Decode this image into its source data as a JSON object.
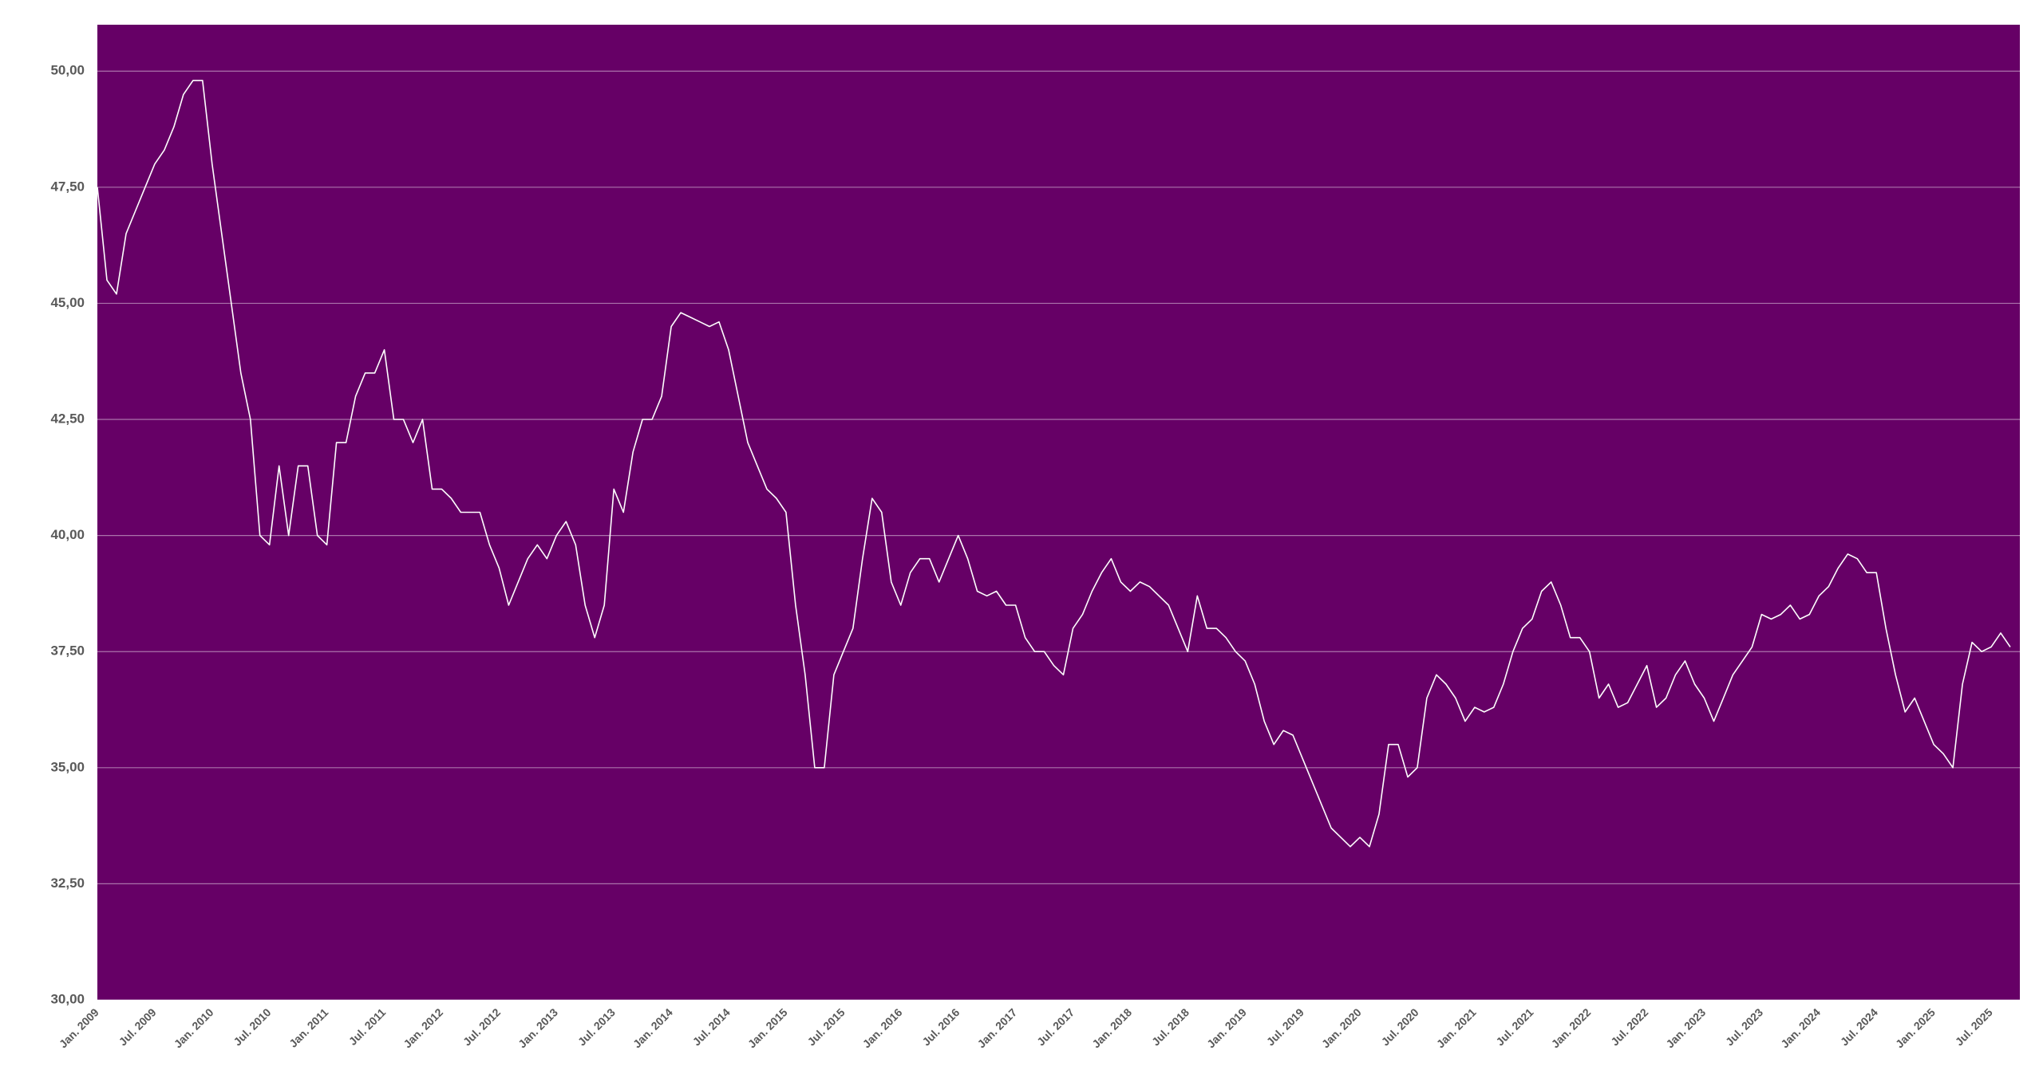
{
  "chart_data": {
    "type": "line",
    "categories": [
      "Jan. 2009",
      null,
      null,
      null,
      null,
      null,
      "Jul. 2009",
      null,
      null,
      null,
      null,
      null,
      "Jan. 2010",
      null,
      null,
      null,
      null,
      null,
      "Jul. 2010",
      null,
      null,
      null,
      null,
      null,
      "Jan. 2011",
      null,
      null,
      null,
      null,
      null,
      "Jul. 2011",
      null,
      null,
      null,
      null,
      null,
      "Jan. 2012",
      null,
      null,
      null,
      null,
      null,
      "Jul. 2012",
      null,
      null,
      null,
      null,
      null,
      "Jan. 2013",
      null,
      null,
      null,
      null,
      null,
      "Jul. 2013",
      null,
      null,
      null,
      null,
      null,
      "Jan. 2014",
      null,
      null,
      null,
      null,
      null,
      "Jul. 2014",
      null,
      null,
      null,
      null,
      null,
      "Jan. 2015",
      null,
      null,
      null,
      null,
      null,
      "Jul. 2015",
      null,
      null,
      null,
      null,
      null,
      "Jan. 2016",
      null,
      null,
      null,
      null,
      null,
      "Jul. 2016",
      null,
      null,
      null,
      null,
      null,
      "Jan. 2017",
      null,
      null,
      null,
      null,
      null,
      "Jul. 2017",
      null,
      null,
      null,
      null,
      null,
      "Jan. 2018",
      null,
      null,
      null,
      null,
      null,
      "Jul. 2018",
      null,
      null,
      null,
      null,
      null,
      "Jan. 2019",
      null,
      null,
      null,
      null,
      null,
      "Jul. 2019",
      null,
      null,
      null,
      null,
      null,
      "Jan. 2020",
      null,
      null,
      null,
      null,
      null,
      "Jul. 2020",
      null,
      null,
      null,
      null,
      null,
      "Jan. 2021",
      null,
      null,
      null,
      null,
      null,
      "Jul. 2021",
      null,
      null,
      null,
      null,
      null,
      "Jan. 2022",
      null,
      null,
      null,
      null,
      null,
      "Jul. 2022",
      null,
      null,
      null,
      null,
      null,
      "Jan. 2023",
      null,
      null,
      null,
      null,
      null,
      "Jul. 2023",
      null,
      null,
      null,
      null,
      null,
      "Jan. 2024",
      null,
      null,
      null,
      null,
      null,
      "Jul. 2024",
      null,
      null,
      null,
      null,
      null,
      "Jan. 2025",
      null,
      null,
      null,
      null,
      null,
      "Jul. 2025",
      null,
      null
    ],
    "values": [
      47.5,
      45.5,
      45.2,
      46.5,
      47,
      47.5,
      48,
      48.3,
      48.8,
      49.5,
      49.8,
      49.8,
      48,
      46.5,
      45,
      43.5,
      42.5,
      40,
      39.8,
      41.5,
      40,
      41.5,
      41.5,
      40,
      39.8,
      42,
      42,
      43,
      43.5,
      43.5,
      44,
      42.5,
      42.5,
      42,
      42.5,
      41,
      41,
      40.8,
      40.5,
      40.5,
      40.5,
      39.8,
      39.3,
      38.5,
      39,
      39.5,
      39.8,
      39.5,
      40,
      40.3,
      39.8,
      38.5,
      37.8,
      38.5,
      41,
      40.5,
      41.8,
      42.5,
      42.5,
      43,
      44.5,
      44.8,
      44.7,
      44.6,
      44.5,
      44.6,
      44,
      43,
      42,
      41.5,
      41,
      40.8,
      40.5,
      38.5,
      37,
      35,
      35,
      37,
      37.5,
      38,
      39.5,
      40.8,
      40.5,
      39,
      38.5,
      39.2,
      39.5,
      39.5,
      39,
      39.5,
      40,
      39.5,
      38.8,
      38.7,
      38.8,
      38.5,
      38.5,
      37.8,
      37.5,
      37.5,
      37.2,
      37,
      38,
      38.3,
      38.8,
      39.2,
      39.5,
      39,
      38.8,
      39,
      38.9,
      38.7,
      38.5,
      38,
      37.5,
      38.7,
      38,
      38,
      37.8,
      37.5,
      37.3,
      36.8,
      36,
      35.5,
      35.8,
      35.7,
      35.2,
      34.7,
      34.2,
      33.7,
      33.5,
      33.3,
      33.5,
      33.3,
      34,
      35.5,
      35.5,
      34.8,
      35,
      36.5,
      37,
      36.8,
      36.5,
      36,
      36.3,
      36.2,
      36.3,
      36.8,
      37.5,
      38,
      38.2,
      38.8,
      39,
      38.5,
      37.8,
      37.8,
      37.5,
      36.5,
      36.8,
      36.3,
      36.4,
      36.8,
      37.2,
      36.3,
      36.5,
      37,
      37.3,
      36.8,
      36.5,
      36,
      36.5,
      37,
      37.3,
      37.6,
      38.3,
      38.2,
      38.3,
      38.5,
      38.2,
      38.3,
      38.7,
      38.9,
      39.3,
      39.6,
      39.5,
      39.2,
      39.2,
      38,
      37,
      36.2,
      36.5,
      36,
      35.5,
      35.3,
      35,
      36.8,
      37.7,
      37.5,
      37.6,
      37.9,
      37.6
    ],
    "color": "#ffffff",
    "background": "#660066",
    "ylim": [
      30,
      51
    ],
    "yticks": [
      {
        "value": 30,
        "label": "30,00"
      },
      {
        "value": 32.5,
        "label": "32,50"
      },
      {
        "value": 35,
        "label": "35,00"
      },
      {
        "value": 37.5,
        "label": "37,50"
      },
      {
        "value": 40,
        "label": "40,00"
      },
      {
        "value": 42.5,
        "label": "42,50"
      },
      {
        "value": 45,
        "label": "45,00"
      },
      {
        "value": 47.5,
        "label": "47,50"
      },
      {
        "value": 50,
        "label": "50,00"
      }
    ],
    "grid": true
  }
}
